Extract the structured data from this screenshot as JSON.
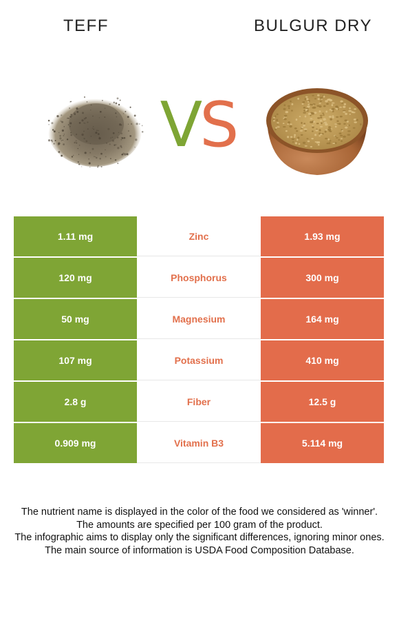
{
  "header": {
    "left_title": "TEFF",
    "right_title": "BULGUR DRY",
    "vs_v": "V",
    "vs_s": "S"
  },
  "colors": {
    "teff_green": "#7fa535",
    "bulgur_orange": "#e36c4b"
  },
  "rows": [
    {
      "left": "1.11 mg",
      "nutrient": "Zinc",
      "right": "1.93 mg"
    },
    {
      "left": "120 mg",
      "nutrient": "Phosphorus",
      "right": "300 mg"
    },
    {
      "left": "50 mg",
      "nutrient": "Magnesium",
      "right": "164 mg"
    },
    {
      "left": "107 mg",
      "nutrient": "Potassium",
      "right": "410 mg"
    },
    {
      "left": "2.8 g",
      "nutrient": "Fiber",
      "right": "12.5 g"
    },
    {
      "left": "0.909 mg",
      "nutrient": "Vitamin B3",
      "right": "5.114 mg"
    }
  ],
  "notes": [
    "The nutrient name is displayed in the color of the food we considered as 'winner'.",
    "The amounts are specified per 100 gram of the product.",
    "The infographic aims to display only the significant differences, ignoring minor ones.",
    "The main source of information is USDA Food Composition Database."
  ]
}
